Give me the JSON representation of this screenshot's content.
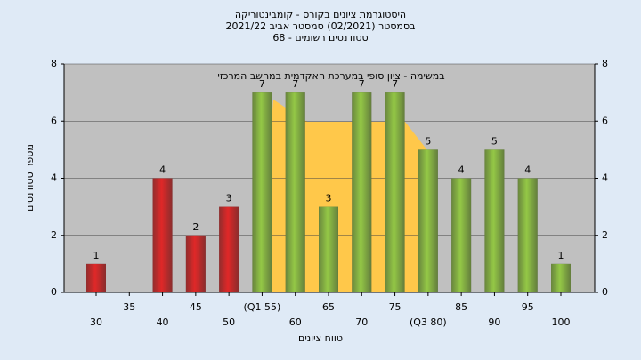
{
  "chart_data": {
    "type": "bar",
    "title": [
      "היסטוגרמת ציונים בקורס - קומבינטוריקה",
      "בסמסטר (02/2021) סמסטר אביב 2021/22",
      "סטודנטים רשומים - 68"
    ],
    "annotation": "במשימה - ציון סופי במערכת האקדמית במחשב המרכזי",
    "x_label": "טווח ציונים",
    "y_label": "מספר סטודנטים",
    "categories": [
      "30",
      "35",
      "40",
      "45",
      "50",
      "(Q1 55)",
      "60",
      "65",
      "70",
      "75",
      "(Q3 80)",
      "85",
      "90",
      "95",
      "100"
    ],
    "values": [
      1,
      0,
      4,
      2,
      3,
      7,
      7,
      3,
      7,
      7,
      5,
      4,
      5,
      4,
      1
    ],
    "colors": [
      "#e02828",
      "#e02828",
      "#e02828",
      "#e02828",
      "#e02828",
      "#94c846",
      "#94c846",
      "#94c846",
      "#94c846",
      "#94c846",
      "#94c846",
      "#94c846",
      "#94c846",
      "#94c846",
      "#94c846"
    ],
    "ylim": [
      0,
      8
    ],
    "yticks": [
      0,
      2,
      4,
      6,
      8
    ],
    "y2lim": [
      0,
      8
    ],
    "y2ticks": [
      0,
      2,
      4,
      6,
      8
    ],
    "grid": true
  }
}
